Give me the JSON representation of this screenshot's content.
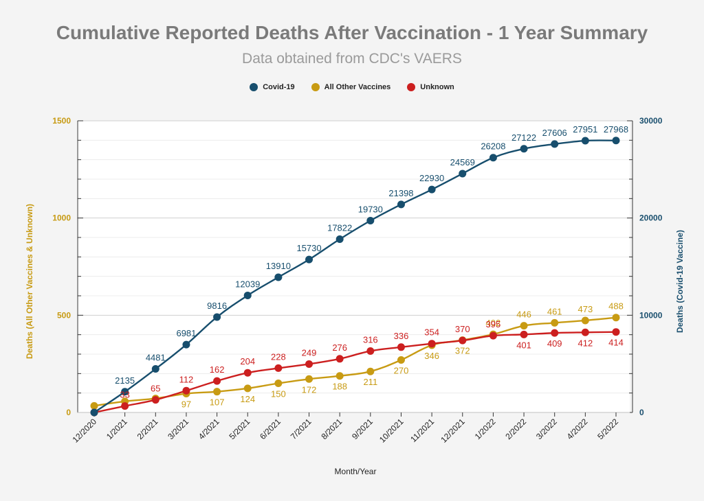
{
  "chart_data": {
    "type": "line",
    "title": "Cumulative Reported Deaths After Vaccination - 1 Year Summary",
    "subtitle": "Data obtained from CDC's VAERS",
    "xlabel": "Month/Year",
    "ylabel_left": "Deaths (All Other Vaccines & Unknown)",
    "ylabel_right": "Deaths (Covid-19 Vaccine)",
    "categories": [
      "12/2020",
      "1/2021",
      "2/2021",
      "3/2021",
      "4/2021",
      "5/2021",
      "6/2021",
      "7/2021",
      "8/2021",
      "9/2021",
      "10/2021",
      "11/2021",
      "12/2021",
      "1/2022",
      "2/2022",
      "3/2022",
      "4/2022",
      "5/2022"
    ],
    "ylim_left": [
      0,
      1500
    ],
    "ylim_right": [
      0,
      30000
    ],
    "yticks_left": [
      0,
      500,
      1000,
      1500
    ],
    "yticks_right": [
      0,
      10000,
      20000,
      30000
    ],
    "grid": true,
    "legend_position": "top-center",
    "series": [
      {
        "name": "Covid-19",
        "axis": "right",
        "color": "#174e6d",
        "values": [
          0,
          2135,
          4481,
          6981,
          9816,
          12039,
          13910,
          15730,
          17822,
          19730,
          21398,
          22930,
          24569,
          26208,
          27122,
          27606,
          27951,
          27968
        ],
        "labels": [
          "",
          "2135",
          "4481",
          "6981",
          "9816",
          "12039",
          "13910",
          "15730",
          "17822",
          "19730",
          "21398",
          "22930",
          "24569",
          "26208",
          "27122",
          "27606",
          "27951",
          "27968"
        ]
      },
      {
        "name": "All Other Vaccines",
        "axis": "left",
        "color": "#c89b13",
        "values": [
          34,
          57,
          72,
          97,
          107,
          124,
          150,
          172,
          188,
          211,
          270,
          346,
          372,
          402,
          446,
          461,
          473,
          488
        ],
        "labels": [
          "",
          "",
          "",
          "97",
          "107",
          "124",
          "150",
          "172",
          "188",
          "211",
          "270",
          "346",
          "372",
          "402",
          "446",
          "461",
          "473",
          "488"
        ]
      },
      {
        "name": "Unknown",
        "axis": "left",
        "color": "#cc1f1f",
        "values": [
          0,
          33,
          65,
          112,
          162,
          204,
          228,
          249,
          276,
          316,
          336,
          354,
          370,
          395,
          401,
          409,
          412,
          414
        ],
        "labels": [
          "",
          "33",
          "65",
          "112",
          "162",
          "204",
          "228",
          "249",
          "276",
          "316",
          "336",
          "354",
          "370",
          "395",
          "401",
          "409",
          "412",
          "414"
        ]
      }
    ]
  }
}
